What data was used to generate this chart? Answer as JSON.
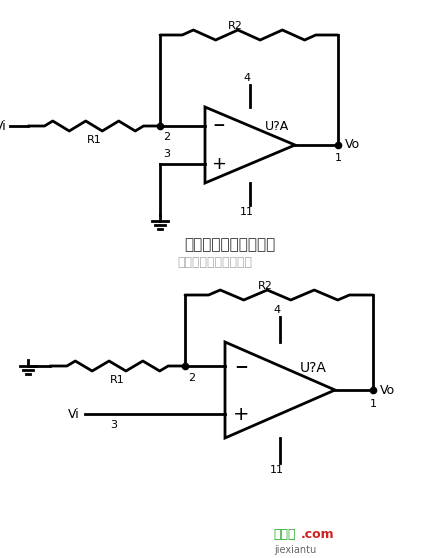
{
  "bg_color": "#ffffff",
  "line_color": "#000000",
  "title1": "运算放大器－反相输入",
  "title2": "杭州将睿科技有限公司",
  "wm1": "接线图",
  "wm2": ".com",
  "wm3": "jiexiantu",
  "R1": "R1",
  "R2": "R2",
  "U1": "U?A",
  "U2": "U?A",
  "Vi": "Vi",
  "Vo": "Vo",
  "n1": "1",
  "n2": "2",
  "n3": "3",
  "n4": "4",
  "n11": "11",
  "fig_w": 4.3,
  "fig_h": 5.58,
  "dpi": 100
}
